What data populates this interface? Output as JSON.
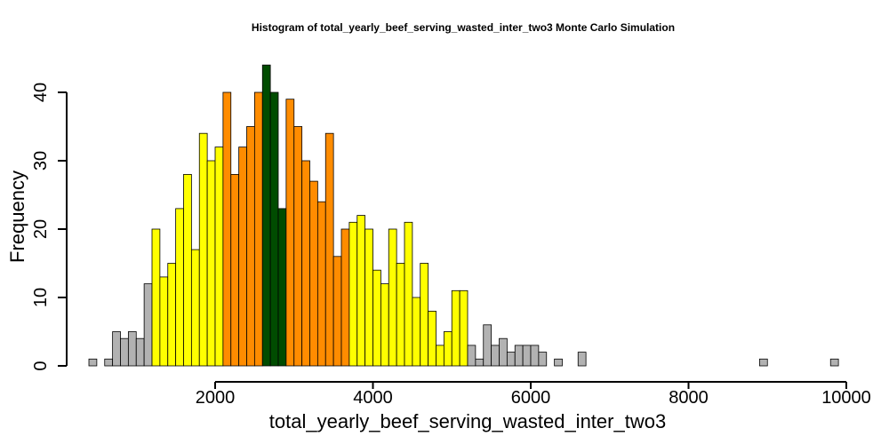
{
  "chart_data": {
    "type": "bar",
    "title": "Histogram of  total_yearly_beef_serving_wasted_inter_two3  Monte Carlo Simulation",
    "xlabel": "total_yearly_beef_serving_wasted_inter_two3",
    "ylabel": "Frequency",
    "xlim": [
      300,
      10000
    ],
    "ylim": [
      0,
      44
    ],
    "x_ticks": [
      "2000",
      "4000",
      "6000",
      "8000",
      "10000"
    ],
    "y_ticks": [
      "0",
      "10",
      "20",
      "30",
      "40"
    ],
    "bin_start": 400,
    "bin_width": 100,
    "counts": [
      1,
      0,
      1,
      5,
      4,
      5,
      4,
      12,
      20,
      13,
      15,
      23,
      28,
      17,
      34,
      30,
      32,
      40,
      28,
      32,
      35,
      40,
      44,
      40,
      23,
      39,
      35,
      30,
      27,
      24,
      34,
      16,
      20,
      21,
      22,
      20,
      14,
      12,
      20,
      15,
      21,
      10,
      15,
      8,
      3,
      5,
      11,
      11,
      3,
      1,
      6,
      3,
      4,
      2,
      3,
      3,
      3,
      2,
      0,
      1,
      0,
      0,
      2,
      0,
      0,
      0,
      0,
      0,
      0,
      0,
      0,
      0,
      0,
      0,
      0,
      0,
      0,
      0,
      0,
      0,
      0,
      0,
      0,
      0,
      0,
      1,
      0,
      0,
      0,
      0,
      0,
      0,
      0,
      0,
      1
    ],
    "bands": [
      {
        "name": "gray",
        "color": "#b2b2b2",
        "from": 400,
        "to": 1200
      },
      {
        "name": "yellow",
        "color": "#ffff00",
        "from": 1200,
        "to": 2100
      },
      {
        "name": "orange",
        "color": "#ff8c00",
        "from": 2100,
        "to": 2600
      },
      {
        "name": "dark-green",
        "color": "#004c00",
        "from": 2600,
        "to": 2900
      },
      {
        "name": "orange",
        "color": "#ff8c00",
        "from": 2900,
        "to": 3700
      },
      {
        "name": "yellow",
        "color": "#ffff00",
        "from": 3700,
        "to": 5200
      },
      {
        "name": "gray",
        "color": "#b2b2b2",
        "from": 5200,
        "to": 9900
      }
    ],
    "grid": false,
    "legend": "none"
  }
}
